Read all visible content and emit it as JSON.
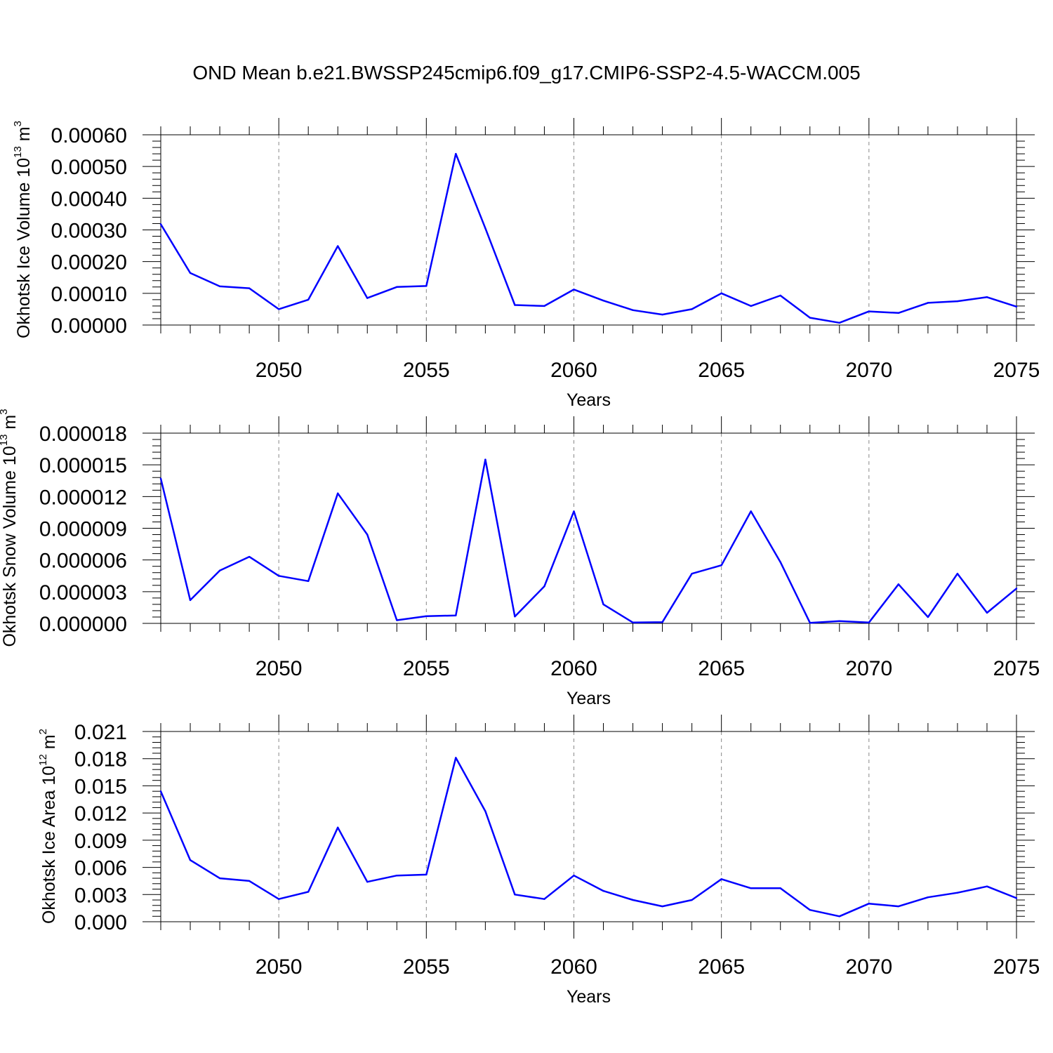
{
  "title": "OND Mean b.e21.BWSSP245cmip6.f09_g17.CMIP6-SSP2-4.5-WACCM.005",
  "line_color": "#0000ff",
  "chart_data": [
    {
      "type": "line",
      "title": "",
      "xlabel": "Years",
      "ylabel": "Okhotsk Ice Volume 10",
      "ylabel_exp": "13",
      "ylabel_unit": "m",
      "ylabel_unit_exp": "3",
      "xlim": [
        2046,
        2075
      ],
      "ylim": [
        0,
        0.0006
      ],
      "grid": "vertical dashed at major x ticks",
      "x_ticks": [
        2050,
        2055,
        2060,
        2065,
        2070,
        2075
      ],
      "x_tick_labels": [
        "2050",
        "2055",
        "2060",
        "2065",
        "2070",
        "2075"
      ],
      "y_ticks": [
        0,
        0.0001,
        0.0002,
        0.0003,
        0.0004,
        0.0005,
        0.0006
      ],
      "y_tick_labels": [
        "0.00000",
        "0.00010",
        "0.00020",
        "0.00030",
        "0.00040",
        "0.00050",
        "0.00060"
      ],
      "x": [
        2046,
        2047,
        2048,
        2049,
        2050,
        2051,
        2052,
        2053,
        2054,
        2055,
        2056,
        2057,
        2058,
        2059,
        2060,
        2061,
        2062,
        2063,
        2064,
        2065,
        2066,
        2067,
        2068,
        2069,
        2070,
        2071,
        2072,
        2073,
        2074,
        2075
      ],
      "series": [
        {
          "values": [
            0.000318,
            0.000164,
            0.000122,
            0.000116,
            5e-05,
            8e-05,
            0.000249,
            8.5e-05,
            0.00012,
            0.000123,
            0.00054,
            0.000305,
            6.3e-05,
            6e-05,
            0.000112,
            7.7e-05,
            4.7e-05,
            3.3e-05,
            5e-05,
            0.0001,
            6e-05,
            9.3e-05,
            2.3e-05,
            7e-06,
            4.3e-05,
            3.8e-05,
            7e-05,
            7.5e-05,
            8.8e-05,
            5.8e-05
          ]
        }
      ]
    },
    {
      "type": "line",
      "title": "",
      "xlabel": "Years",
      "ylabel": "Okhotsk Snow Volume 10",
      "ylabel_exp": "13",
      "ylabel_unit": "m",
      "ylabel_unit_exp": "3",
      "xlim": [
        2046,
        2075
      ],
      "ylim": [
        0,
        1.8e-05
      ],
      "grid": "vertical dashed at major x ticks",
      "x_ticks": [
        2050,
        2055,
        2060,
        2065,
        2070,
        2075
      ],
      "x_tick_labels": [
        "2050",
        "2055",
        "2060",
        "2065",
        "2070",
        "2075"
      ],
      "y_ticks": [
        0,
        3e-06,
        6e-06,
        9e-06,
        1.2e-05,
        1.5e-05,
        1.8e-05
      ],
      "y_tick_labels": [
        "0.000000",
        "0.000003",
        "0.000006",
        "0.000009",
        "0.000012",
        "0.000015",
        "0.000018"
      ],
      "x": [
        2046,
        2047,
        2048,
        2049,
        2050,
        2051,
        2052,
        2053,
        2054,
        2055,
        2056,
        2057,
        2058,
        2059,
        2060,
        2061,
        2062,
        2063,
        2064,
        2065,
        2066,
        2067,
        2068,
        2069,
        2070,
        2071,
        2072,
        2073,
        2074,
        2075
      ],
      "series": [
        {
          "values": [
            1.37e-05,
            2.2e-06,
            5e-06,
            6.3e-06,
            4.5e-06,
            4e-06,
            1.23e-05,
            8.4e-06,
            3e-07,
            6.8e-07,
            7.5e-07,
            1.55e-05,
            6.5e-07,
            3.5e-06,
            1.06e-05,
            1.8e-06,
            8e-08,
            1.2e-07,
            4.7e-06,
            5.5e-06,
            1.06e-05,
            5.8e-06,
            5e-08,
            2.2e-07,
            8e-08,
            3.7e-06,
            6e-07,
            4.7e-06,
            1e-06,
            3.3e-06
          ]
        }
      ]
    },
    {
      "type": "line",
      "title": "",
      "xlabel": "Years",
      "ylabel": "Okhotsk Ice Area 10",
      "ylabel_exp": "12",
      "ylabel_unit": "m",
      "ylabel_unit_exp": "2",
      "xlim": [
        2046,
        2075
      ],
      "ylim": [
        0,
        0.021
      ],
      "grid": "vertical dashed at major x ticks",
      "x_ticks": [
        2050,
        2055,
        2060,
        2065,
        2070,
        2075
      ],
      "x_tick_labels": [
        "2050",
        "2055",
        "2060",
        "2065",
        "2070",
        "2075"
      ],
      "y_ticks": [
        0,
        0.003,
        0.006,
        0.009,
        0.012,
        0.015,
        0.018,
        0.021
      ],
      "y_tick_labels": [
        "0.000",
        "0.003",
        "0.006",
        "0.009",
        "0.012",
        "0.015",
        "0.018",
        "0.021"
      ],
      "x": [
        2046,
        2047,
        2048,
        2049,
        2050,
        2051,
        2052,
        2053,
        2054,
        2055,
        2056,
        2057,
        2058,
        2059,
        2060,
        2061,
        2062,
        2063,
        2064,
        2065,
        2066,
        2067,
        2068,
        2069,
        2070,
        2071,
        2072,
        2073,
        2074,
        2075
      ],
      "series": [
        {
          "values": [
            0.0144,
            0.0068,
            0.0048,
            0.0045,
            0.0025,
            0.0033,
            0.0104,
            0.0044,
            0.0051,
            0.0052,
            0.0181,
            0.0122,
            0.003,
            0.0025,
            0.0051,
            0.0034,
            0.0024,
            0.0017,
            0.0024,
            0.0047,
            0.0037,
            0.0037,
            0.0013,
            0.0006,
            0.002,
            0.0017,
            0.0027,
            0.0032,
            0.0039,
            0.0026
          ]
        }
      ]
    }
  ]
}
